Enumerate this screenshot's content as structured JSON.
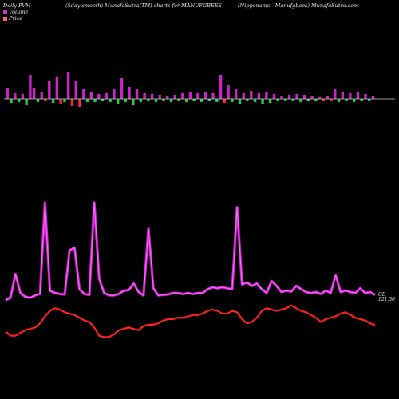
{
  "header": {
    "left": "Daily PVM",
    "center": "(5day smooth) MunafaSutra(TM) charts for MANUFGBEES",
    "right": "(Nipponamc - Manufgbees) MunafaSutra.com"
  },
  "legend": {
    "volume_label": "Volume",
    "price_label": "Price",
    "volume_color": "#cc33cc",
    "price_color": "#ff6666"
  },
  "end_labels": {
    "top": "GE",
    "bottom": "121.36"
  },
  "chart_data": {
    "type": "line",
    "colors": {
      "volume_line": "#cc22cc",
      "volume_line_glow": "#ff66ff",
      "price_line": "#ff2020",
      "bar_up": "#cc22cc",
      "bar_down": "#ff2244",
      "bar_green": "#22cc44",
      "axis": "#cccccc"
    },
    "volume_bars": {
      "values": [
        14,
        -5,
        7,
        -4,
        6,
        -8,
        30,
        14,
        -4,
        9,
        -3,
        22,
        -5,
        27,
        -6,
        -4,
        34,
        -9,
        23,
        -10,
        13,
        -4,
        9,
        -4,
        6,
        -3,
        8,
        -4,
        12,
        -6,
        26,
        -4,
        15,
        -7,
        13,
        -4,
        7,
        -3,
        6,
        -4,
        5,
        -3,
        4,
        -4,
        5,
        -3,
        8,
        -4,
        9,
        -3,
        8,
        -4,
        9,
        -3,
        8,
        -4,
        30,
        -5,
        18,
        -4,
        13,
        -6,
        8,
        -3,
        10,
        -4,
        8,
        -6,
        9,
        -5,
        6,
        -3,
        4,
        -3,
        5,
        -3,
        6,
        -4,
        5,
        -3,
        4,
        -3,
        3,
        -3,
        4,
        -3,
        12,
        -4,
        9,
        -3,
        8,
        -4,
        9,
        -3,
        6,
        -3,
        4
      ],
      "bar_kinds": [
        "u",
        "g",
        "u",
        "g",
        "u",
        "g",
        "u",
        "u",
        "g",
        "u",
        "r",
        "u",
        "g",
        "u",
        "r",
        "g",
        "u",
        "r",
        "u",
        "r",
        "u",
        "g",
        "u",
        "g",
        "u",
        "g",
        "u",
        "g",
        "u",
        "g",
        "u",
        "g",
        "u",
        "g",
        "u",
        "g",
        "u",
        "g",
        "u",
        "g",
        "u",
        "g",
        "u",
        "g",
        "u",
        "g",
        "u",
        "g",
        "u",
        "g",
        "u",
        "g",
        "u",
        "g",
        "u",
        "g",
        "u",
        "r",
        "u",
        "g",
        "u",
        "g",
        "u",
        "g",
        "u",
        "g",
        "u",
        "g",
        "u",
        "g",
        "u",
        "g",
        "u",
        "g",
        "u",
        "g",
        "u",
        "g",
        "u",
        "g",
        "u",
        "g",
        "u",
        "r",
        "u",
        "r",
        "u",
        "g",
        "u",
        "g",
        "u",
        "g",
        "u",
        "g",
        "u",
        "g",
        "u"
      ]
    },
    "volume_line": {
      "y": [
        45,
        50,
        100,
        60,
        52,
        50,
        55,
        58,
        250,
        65,
        60,
        58,
        57,
        150,
        155,
        68,
        58,
        56,
        250,
        90,
        60,
        55,
        55,
        58,
        65,
        66,
        80,
        62,
        55,
        195,
        70,
        55,
        56,
        57,
        60,
        60,
        58,
        60,
        58,
        60,
        60,
        68,
        72,
        70,
        72,
        70,
        68,
        240,
        78,
        82,
        75,
        80,
        68,
        60,
        85,
        75,
        62,
        65,
        63,
        75,
        68,
        62,
        60,
        62,
        58,
        65,
        60,
        98,
        62,
        65,
        62,
        60,
        70,
        60,
        62,
        56
      ],
      "ylim": [
        0,
        300
      ]
    },
    "price_line": {
      "y": [
        120.9,
        120.6,
        120.6,
        120.8,
        121.0,
        121.1,
        121.2,
        121.5,
        122.0,
        122.4,
        122.6,
        122.5,
        122.3,
        122.2,
        122.1,
        121.9,
        121.7,
        121.6,
        121.2,
        120.6,
        120.5,
        120.5,
        120.7,
        121.0,
        121.1,
        121.2,
        121.1,
        121.0,
        121.3,
        121.4,
        121.4,
        121.5,
        121.7,
        121.8,
        121.8,
        121.9,
        121.9,
        122.0,
        122.1,
        122.1,
        122.2,
        122.4,
        122.5,
        122.4,
        122.2,
        122.2,
        122.4,
        122.3,
        121.8,
        121.5,
        121.6,
        121.9,
        122.4,
        122.6,
        122.5,
        122.4,
        122.5,
        122.6,
        122.8,
        122.6,
        122.4,
        122.3,
        122.1,
        121.9,
        121.6,
        121.8,
        121.9,
        122.0,
        122.2,
        122.3,
        122.1,
        121.9,
        121.8,
        121.7,
        121.5,
        121.36
      ],
      "ylim": [
        116,
        132
      ]
    },
    "xlabel": "",
    "ylabel": "",
    "grid": false
  }
}
